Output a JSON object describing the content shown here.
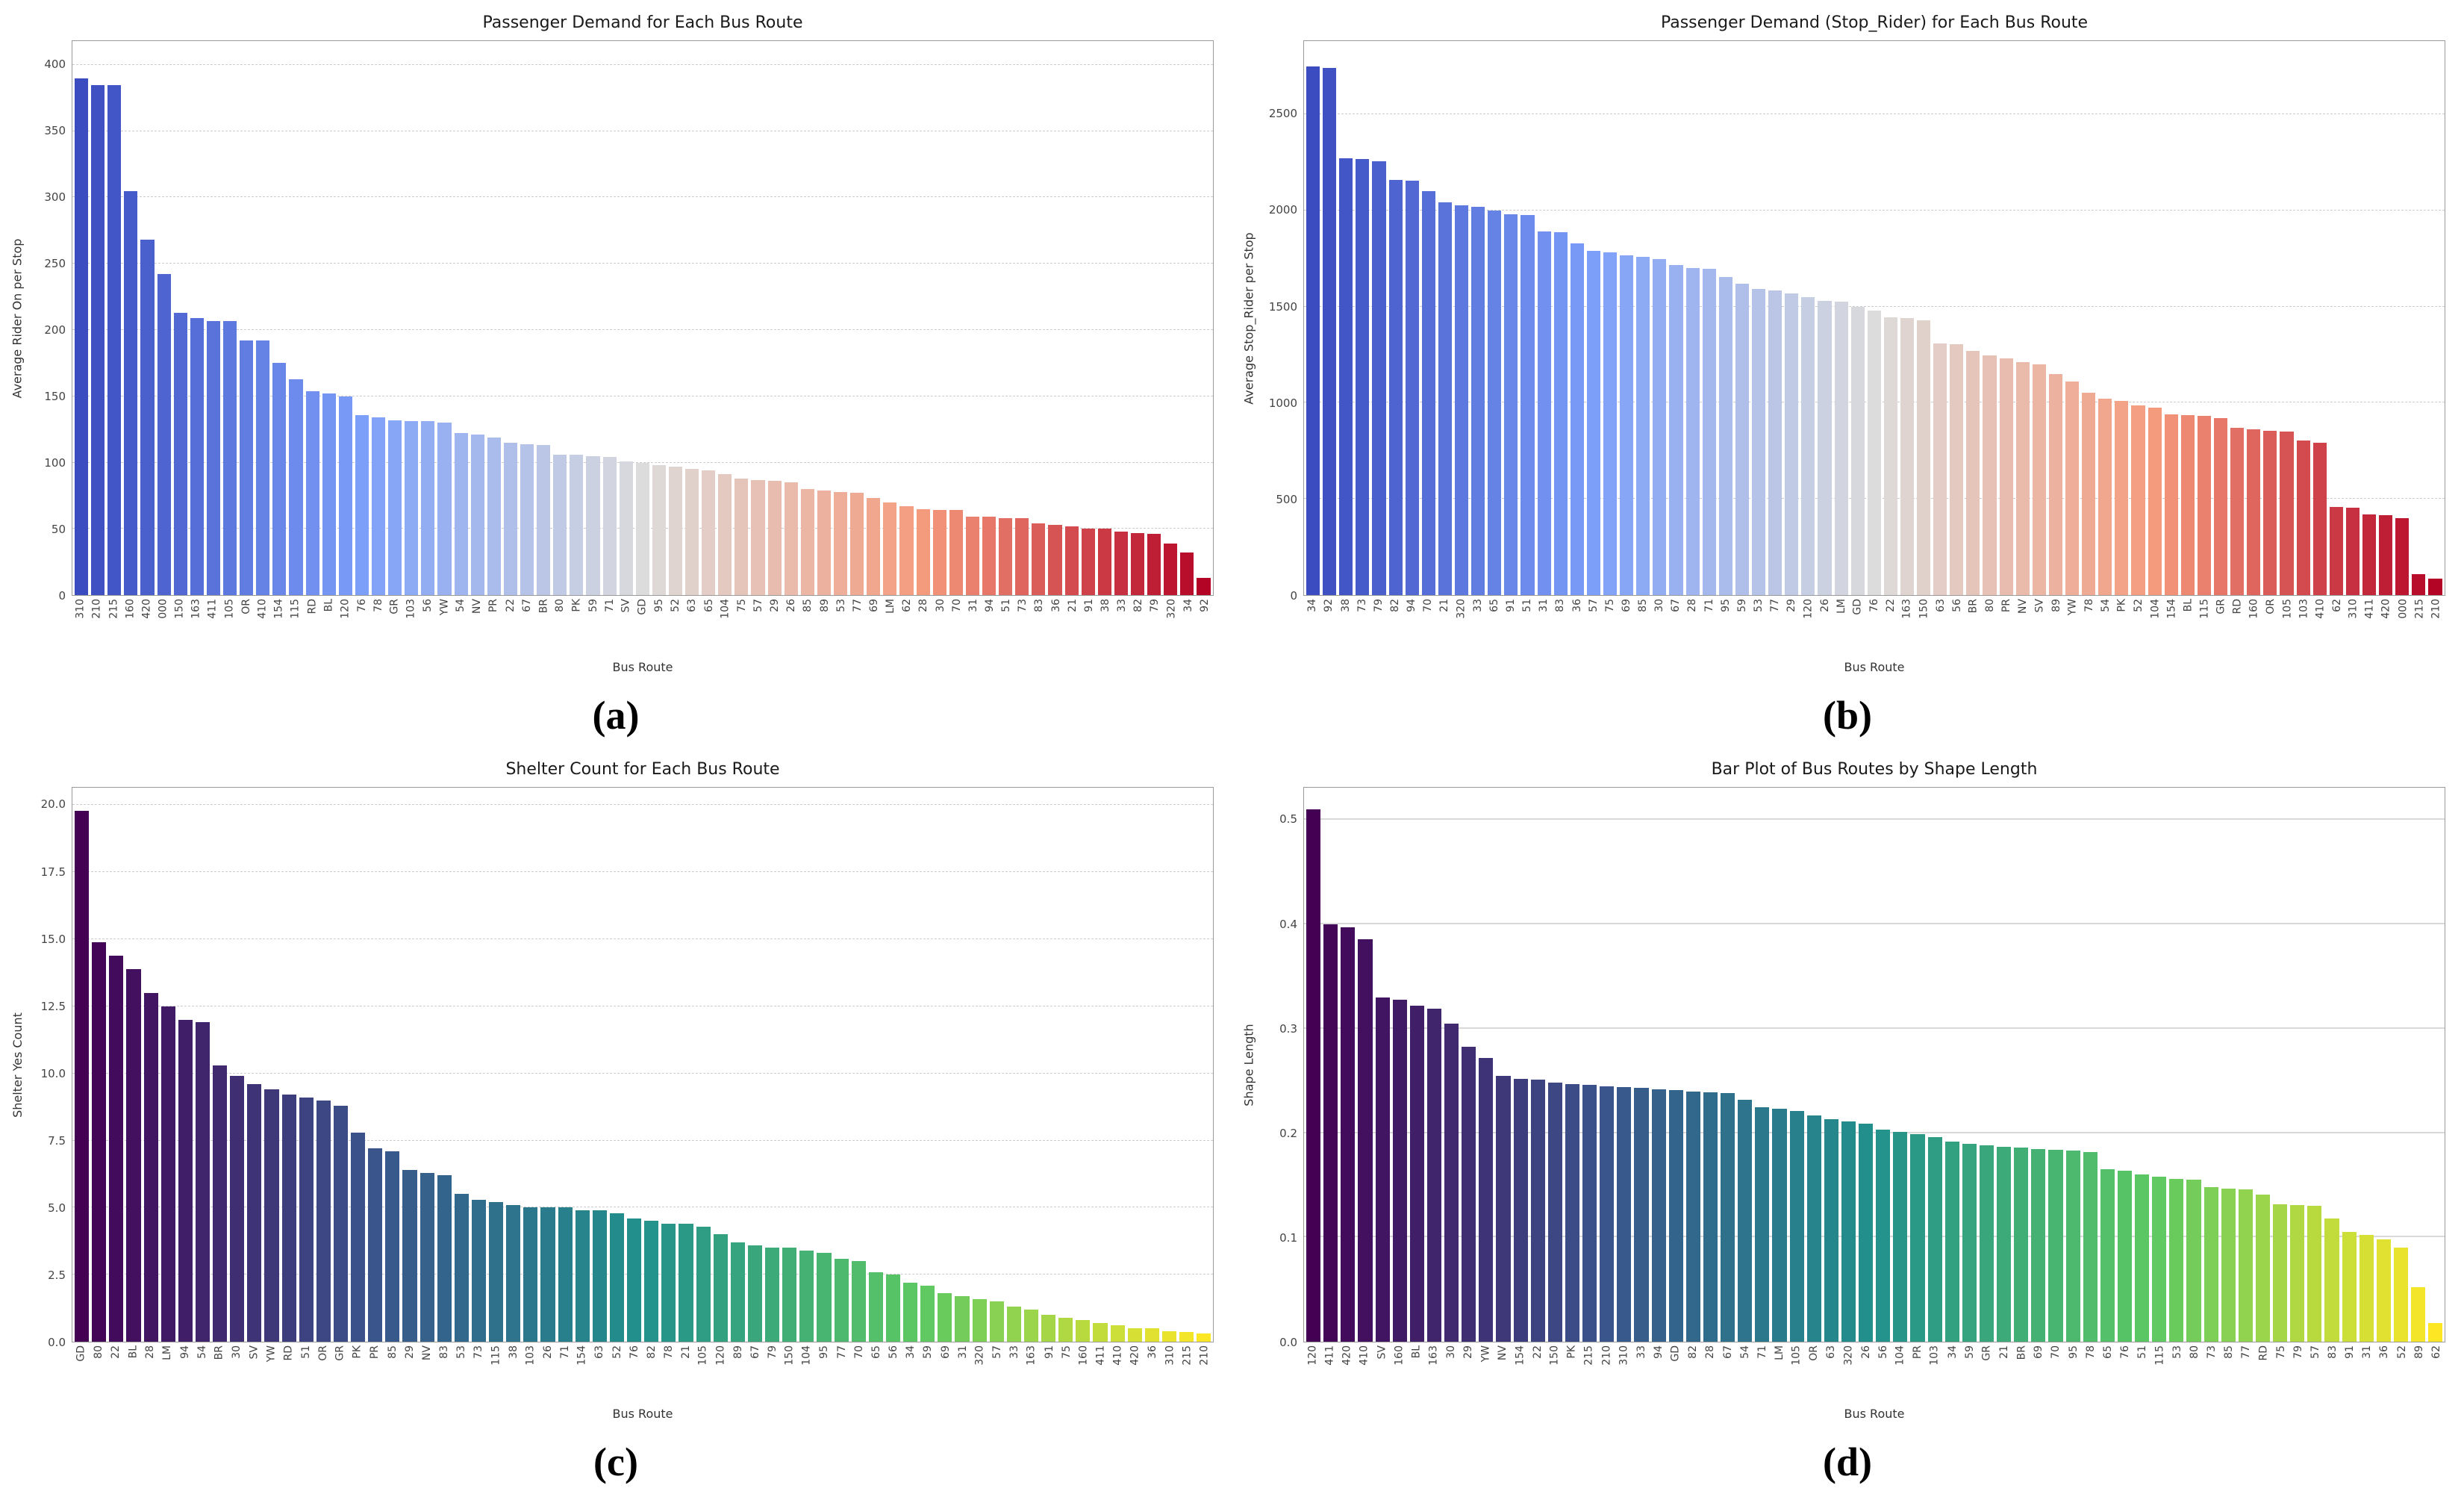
{
  "figure": {
    "background": "#ffffff",
    "panel_labels": [
      "(a)",
      "(b)",
      "(c)",
      "(d)"
    ]
  },
  "colormaps": {
    "coolwarm": [
      [
        0,
        "#3b4cc0"
      ],
      [
        0.25,
        "#7c9ff9"
      ],
      [
        0.5,
        "#dddcdc"
      ],
      [
        0.75,
        "#f59b7d"
      ],
      [
        1,
        "#b40426"
      ]
    ],
    "viridis": [
      [
        0,
        "#440154"
      ],
      [
        0.25,
        "#3b528b"
      ],
      [
        0.5,
        "#21918c"
      ],
      [
        0.75,
        "#5ec962"
      ],
      [
        1,
        "#fde725"
      ]
    ]
  },
  "chart_data": [
    {
      "type": "bar",
      "panel": "(a)",
      "title": "Passenger Demand for Each Bus Route",
      "xlabel": "Bus Route",
      "ylabel": "Average Rider On per Stop",
      "ylim": [
        0,
        418
      ],
      "yticks": [
        0,
        50,
        100,
        150,
        200,
        250,
        300,
        350,
        400
      ],
      "ytick_labels": [
        "0",
        "50",
        "100",
        "150",
        "200",
        "250",
        "300",
        "350",
        "400"
      ],
      "grid": "dashed",
      "legend": "none",
      "colormap": "coolwarm",
      "categories": [
        "310",
        "210",
        "215",
        "160",
        "420",
        "000",
        "150",
        "163",
        "411",
        "105",
        "OR",
        "410",
        "154",
        "115",
        "RD",
        "BL",
        "120",
        "76",
        "78",
        "GR",
        "103",
        "56",
        "YW",
        "54",
        "NV",
        "PR",
        "22",
        "67",
        "BR",
        "80",
        "PK",
        "59",
        "71",
        "SV",
        "GD",
        "95",
        "52",
        "63",
        "65",
        "104",
        "75",
        "57",
        "29",
        "26",
        "85",
        "89",
        "53",
        "77",
        "69",
        "LM",
        "62",
        "28",
        "30",
        "70",
        "31",
        "94",
        "51",
        "73",
        "83",
        "36",
        "21",
        "91",
        "38",
        "33",
        "82",
        "79",
        "320",
        "34",
        "92"
      ],
      "values": [
        390,
        385,
        385,
        305,
        268,
        242,
        213,
        209,
        207,
        207,
        192,
        192,
        175,
        163,
        154,
        152,
        150,
        136,
        134,
        132,
        131,
        131,
        130,
        122,
        121,
        119,
        115,
        114,
        113,
        106,
        106,
        105,
        104,
        101,
        100,
        98,
        97,
        95,
        94,
        91,
        88,
        87,
        86,
        85,
        80,
        79,
        78,
        77,
        73,
        70,
        67,
        65,
        64,
        64,
        59,
        59,
        58,
        58,
        54,
        53,
        52,
        50,
        50,
        48,
        47,
        46,
        39,
        32,
        13
      ]
    },
    {
      "type": "bar",
      "panel": "(b)",
      "title": "Passenger Demand (Stop_Rider) for Each Bus Route",
      "xlabel": "Bus Route",
      "ylabel": "Average Stop_Rider per Stop",
      "ylim": [
        0,
        2880
      ],
      "yticks": [
        0,
        500,
        1000,
        1500,
        2000,
        2500
      ],
      "ytick_labels": [
        "0",
        "500",
        "1000",
        "1500",
        "2000",
        "2500"
      ],
      "grid": "dashed",
      "legend": "none",
      "colormap": "coolwarm",
      "categories": [
        "34",
        "92",
        "38",
        "73",
        "79",
        "82",
        "94",
        "70",
        "21",
        "320",
        "33",
        "65",
        "91",
        "51",
        "31",
        "83",
        "36",
        "57",
        "75",
        "69",
        "85",
        "30",
        "67",
        "28",
        "71",
        "95",
        "59",
        "53",
        "77",
        "29",
        "120",
        "26",
        "LM",
        "GD",
        "76",
        "22",
        "163",
        "150",
        "63",
        "56",
        "BR",
        "80",
        "PR",
        "NV",
        "SV",
        "89",
        "YW",
        "78",
        "54",
        "PK",
        "52",
        "104",
        "154",
        "BL",
        "115",
        "GR",
        "RD",
        "160",
        "OR",
        "105",
        "103",
        "410",
        "62",
        "310",
        "411",
        "420",
        "000",
        "215",
        "210"
      ],
      "values": [
        2750,
        2740,
        2270,
        2265,
        2255,
        2160,
        2155,
        2100,
        2040,
        2025,
        2020,
        2000,
        1980,
        1975,
        1890,
        1885,
        1830,
        1790,
        1780,
        1765,
        1760,
        1745,
        1715,
        1700,
        1695,
        1655,
        1620,
        1590,
        1585,
        1570,
        1550,
        1530,
        1525,
        1500,
        1480,
        1445,
        1440,
        1430,
        1310,
        1305,
        1270,
        1245,
        1230,
        1210,
        1200,
        1150,
        1110,
        1050,
        1020,
        1010,
        985,
        975,
        940,
        935,
        930,
        920,
        870,
        860,
        855,
        850,
        805,
        790,
        460,
        455,
        420,
        415,
        400,
        110,
        85
      ]
    },
    {
      "type": "bar",
      "panel": "(c)",
      "title": "Shelter Count for Each Bus Route",
      "xlabel": "Bus Route",
      "ylabel": "Shelter Yes Count",
      "ylim": [
        0,
        20.65
      ],
      "yticks": [
        0,
        2.5,
        5,
        7.5,
        10,
        12.5,
        15,
        17.5,
        20
      ],
      "ytick_labels": [
        "0.0",
        "2.5",
        "5.0",
        "7.5",
        "10.0",
        "12.5",
        "15.0",
        "17.5",
        "20.0"
      ],
      "grid": "dashed",
      "legend": "none",
      "colormap": "viridis",
      "categories": [
        "GD",
        "80",
        "22",
        "BL",
        "28",
        "LM",
        "94",
        "54",
        "BR",
        "30",
        "SV",
        "YW",
        "RD",
        "51",
        "OR",
        "GR",
        "PK",
        "PR",
        "85",
        "29",
        "NV",
        "83",
        "53",
        "73",
        "115",
        "38",
        "103",
        "26",
        "71",
        "154",
        "63",
        "52",
        "76",
        "82",
        "78",
        "21",
        "105",
        "120",
        "89",
        "67",
        "79",
        "150",
        "104",
        "95",
        "77",
        "70",
        "65",
        "56",
        "34",
        "59",
        "69",
        "31",
        "320",
        "57",
        "33",
        "163",
        "91",
        "75",
        "160",
        "411",
        "410",
        "420",
        "36",
        "310",
        "215",
        "210"
      ],
      "values": [
        19.8,
        14.9,
        14.4,
        13.9,
        13.0,
        12.5,
        12.0,
        11.9,
        10.3,
        9.9,
        9.6,
        9.4,
        9.2,
        9.1,
        9.0,
        8.8,
        7.8,
        7.2,
        7.1,
        6.4,
        6.3,
        6.2,
        5.5,
        5.3,
        5.2,
        5.1,
        5.0,
        5.0,
        5.0,
        4.9,
        4.9,
        4.8,
        4.6,
        4.5,
        4.4,
        4.4,
        4.3,
        4.0,
        3.7,
        3.6,
        3.5,
        3.5,
        3.4,
        3.3,
        3.1,
        3.0,
        2.6,
        2.5,
        2.2,
        2.1,
        1.8,
        1.7,
        1.6,
        1.5,
        1.3,
        1.2,
        1.0,
        0.9,
        0.8,
        0.7,
        0.6,
        0.5,
        0.5,
        0.4,
        0.35,
        0.3
      ]
    },
    {
      "type": "bar",
      "panel": "(d)",
      "title": "Bar Plot of Bus Routes by Shape Length",
      "xlabel": "Bus Route",
      "ylabel": "Shape Length",
      "ylim": [
        0,
        0.531
      ],
      "yticks": [
        0,
        0.1,
        0.2,
        0.3,
        0.4,
        0.5
      ],
      "ytick_labels": [
        "0.0",
        "0.1",
        "0.2",
        "0.3",
        "0.4",
        "0.5"
      ],
      "grid": "solid",
      "legend": "none",
      "colormap": "viridis",
      "categories": [
        "120",
        "411",
        "420",
        "410",
        "SV",
        "160",
        "BL",
        "163",
        "30",
        "29",
        "YW",
        "NV",
        "154",
        "22",
        "150",
        "PK",
        "215",
        "210",
        "310",
        "33",
        "94",
        "GD",
        "82",
        "28",
        "67",
        "54",
        "71",
        "LM",
        "105",
        "OR",
        "63",
        "320",
        "26",
        "56",
        "104",
        "PR",
        "103",
        "34",
        "59",
        "GR",
        "21",
        "BR",
        "69",
        "70",
        "95",
        "78",
        "65",
        "76",
        "51",
        "115",
        "53",
        "80",
        "73",
        "85",
        "77",
        "RD",
        "75",
        "79",
        "57",
        "83",
        "91",
        "31",
        "36",
        "52",
        "89",
        "62"
      ],
      "values": [
        0.51,
        0.4,
        0.397,
        0.386,
        0.33,
        0.328,
        0.322,
        0.319,
        0.305,
        0.283,
        0.272,
        0.255,
        0.252,
        0.251,
        0.248,
        0.247,
        0.246,
        0.245,
        0.244,
        0.243,
        0.242,
        0.241,
        0.24,
        0.239,
        0.238,
        0.232,
        0.225,
        0.223,
        0.221,
        0.217,
        0.213,
        0.211,
        0.209,
        0.203,
        0.201,
        0.199,
        0.196,
        0.192,
        0.19,
        0.188,
        0.187,
        0.186,
        0.185,
        0.184,
        0.183,
        0.182,
        0.165,
        0.164,
        0.16,
        0.158,
        0.156,
        0.155,
        0.148,
        0.147,
        0.146,
        0.141,
        0.132,
        0.131,
        0.13,
        0.118,
        0.105,
        0.102,
        0.098,
        0.09,
        0.052,
        0.018
      ]
    }
  ]
}
